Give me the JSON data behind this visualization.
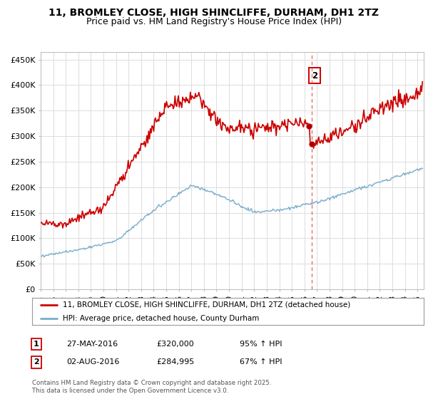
{
  "title": "11, BROMLEY CLOSE, HIGH SHINCLIFFE, DURHAM, DH1 2TZ",
  "subtitle": "Price paid vs. HM Land Registry's House Price Index (HPI)",
  "ylabel_values": [
    "£0",
    "£50K",
    "£100K",
    "£150K",
    "£200K",
    "£250K",
    "£300K",
    "£350K",
    "£400K",
    "£450K"
  ],
  "yticks": [
    0,
    50000,
    100000,
    150000,
    200000,
    250000,
    300000,
    350000,
    400000,
    450000
  ],
  "xlim_start": 1995.0,
  "xlim_end": 2025.5,
  "ylim": [
    0,
    465000
  ],
  "red_line_color": "#cc0000",
  "blue_line_color": "#7aadcc",
  "vline_color": "#dd4444",
  "vline_x": 2016.6,
  "marker1_x": 2016.38,
  "marker1_y": 320000,
  "marker2_x": 2016.6,
  "marker2_y": 284995,
  "annotation2_label": "2",
  "legend_label_red": "11, BROMLEY CLOSE, HIGH SHINCLIFFE, DURHAM, DH1 2TZ (detached house)",
  "legend_label_blue": "HPI: Average price, detached house, County Durham",
  "table_row1": [
    "1",
    "27-MAY-2016",
    "£320,000",
    "95% ↑ HPI"
  ],
  "table_row2": [
    "2",
    "02-AUG-2016",
    "£284,995",
    "67% ↑ HPI"
  ],
  "footer": "Contains HM Land Registry data © Crown copyright and database right 2025.\nThis data is licensed under the Open Government Licence v3.0.",
  "background_color": "#ffffff",
  "grid_color": "#dddddd",
  "title_fontsize": 10,
  "subtitle_fontsize": 9,
  "tick_fontsize": 8,
  "legend_fontsize": 7.5,
  "table_fontsize": 8
}
